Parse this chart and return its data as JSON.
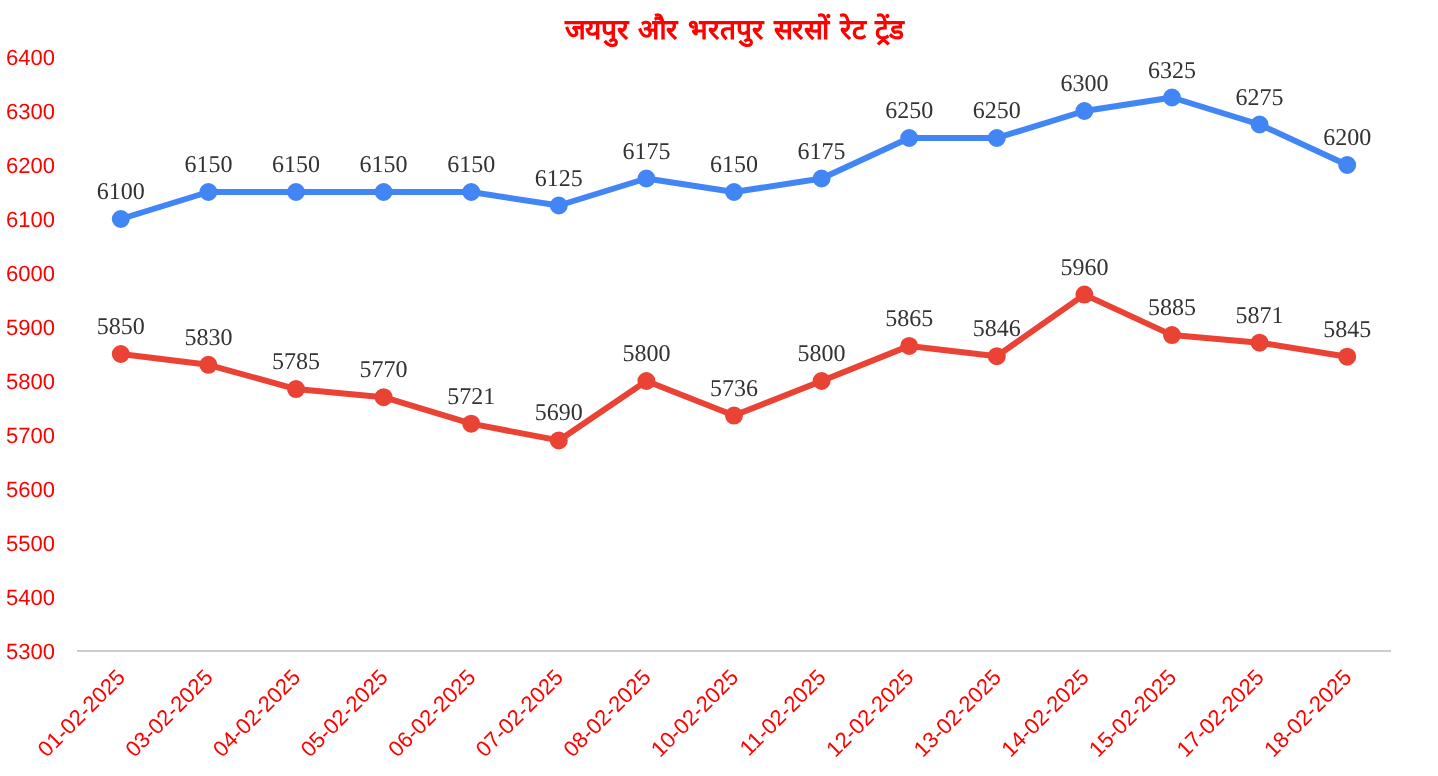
{
  "chart_data": {
    "type": "line",
    "title": "जयपुर और भरतपुर सरसों रेट ट्रेंड",
    "categories": [
      "01-02-2025",
      "03-02-2025",
      "04-02-2025",
      "05-02-2025",
      "06-02-2025",
      "07-02-2025",
      "08-02-2025",
      "10-02-2025",
      "11-02-2025",
      "12-02-2025",
      "13-02-2025",
      "14-02-2025",
      "15-02-2025",
      "17-02-2025",
      "18-02-2025"
    ],
    "series": [
      {
        "color": "#4285f4",
        "values": [
          6100,
          6150,
          6150,
          6150,
          6150,
          6125,
          6175,
          6150,
          6175,
          6250,
          6250,
          6300,
          6325,
          6275,
          6200
        ]
      },
      {
        "color": "#ea4335",
        "values": [
          5850,
          5830,
          5785,
          5770,
          5721,
          5690,
          5800,
          5736,
          5800,
          5865,
          5846,
          5960,
          5885,
          5871,
          5845
        ]
      }
    ],
    "ylim": [
      5300,
      6400
    ],
    "yticks": [
      5300,
      5400,
      5500,
      5600,
      5700,
      5800,
      5900,
      6000,
      6100,
      6200,
      6300,
      6400
    ],
    "grid": false,
    "marker": "circle",
    "line_style": "solid",
    "data_labels": true
  }
}
